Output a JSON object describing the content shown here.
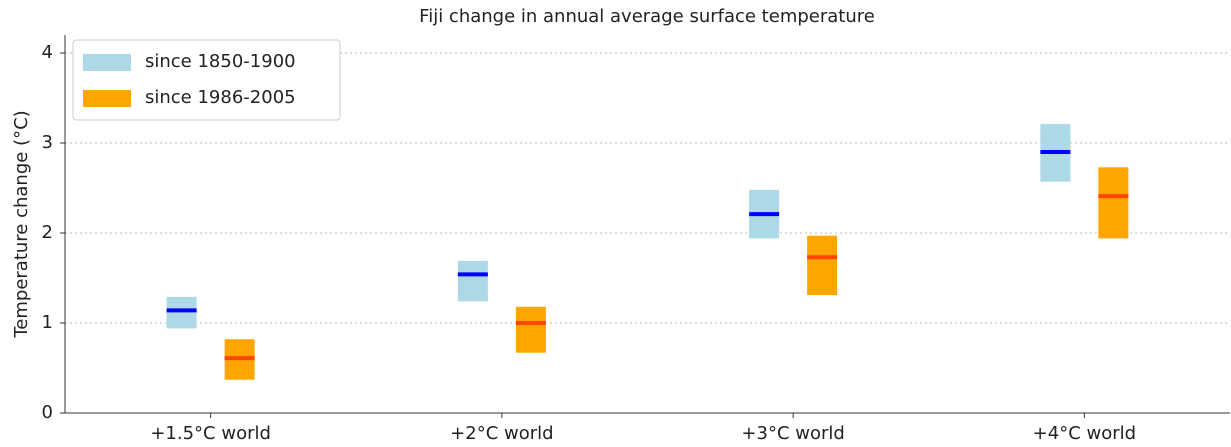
{
  "chart_data": {
    "type": "range_bar",
    "title": "Fiji change in annual average surface temperature",
    "y_label": "Temperature change (°C)",
    "categories": [
      "+1.5°C world",
      "+2°C world",
      "+3°C world",
      "+4°C world"
    ],
    "series": [
      {
        "name": "since 1850-1900",
        "color": "#add8e6",
        "median_color": "#0000ff",
        "low": [
          0.94,
          1.24,
          1.94,
          2.57
        ],
        "high": [
          1.29,
          1.69,
          2.48,
          3.21
        ],
        "values": [
          1.14,
          1.54,
          2.21,
          2.9
        ]
      },
      {
        "name": "since 1986-2005",
        "color": "#ffa500",
        "median_color": "#ff4500",
        "low": [
          0.37,
          0.67,
          1.31,
          1.94
        ],
        "high": [
          0.82,
          1.18,
          1.97,
          2.73
        ],
        "values": [
          0.61,
          1.0,
          1.73,
          2.41
        ]
      }
    ],
    "ylim": [
      0,
      4.2
    ],
    "yticks": [
      0,
      1,
      2,
      3,
      4
    ],
    "grid": true,
    "legend": "upper-left"
  }
}
